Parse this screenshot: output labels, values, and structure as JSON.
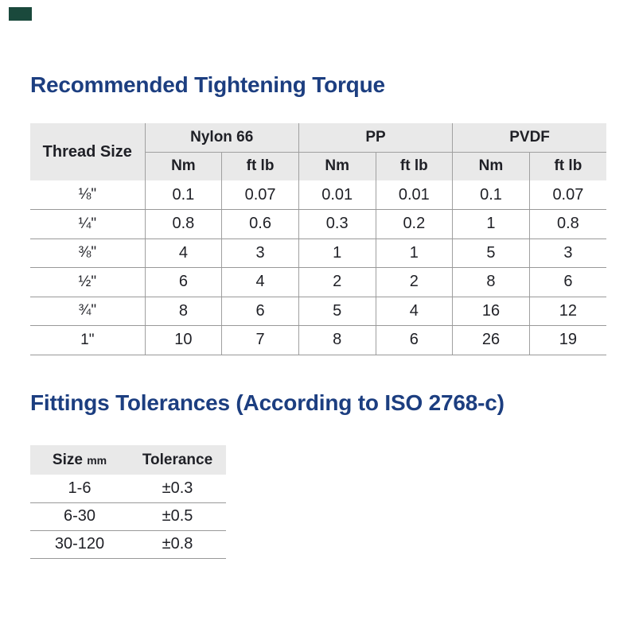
{
  "page": {
    "accent_swatch_color": "#1a493c",
    "title_color": "#1c3e80",
    "header_bg_color": "#e9e9e9",
    "border_color": "#999999"
  },
  "torque_section": {
    "title": "Recommended Tightening Torque",
    "table": {
      "corner_header": "Thread Size",
      "group_headers": [
        "Nylon 66",
        "PP",
        "PVDF"
      ],
      "unit_headers": [
        "Nm",
        "ft lb",
        "Nm",
        "ft lb",
        "Nm",
        "ft lb"
      ],
      "rows": [
        {
          "thread_size": "⅛\"",
          "values": [
            "0.1",
            "0.07",
            "0.01",
            "0.01",
            "0.1",
            "0.07"
          ]
        },
        {
          "thread_size": "¼\"",
          "values": [
            "0.8",
            "0.6",
            "0.3",
            "0.2",
            "1",
            "0.8"
          ]
        },
        {
          "thread_size": "⅜\"",
          "values": [
            "4",
            "3",
            "1",
            "1",
            "5",
            "3"
          ]
        },
        {
          "thread_size": "½\"",
          "values": [
            "6",
            "4",
            "2",
            "2",
            "8",
            "6"
          ]
        },
        {
          "thread_size": "¾\"",
          "values": [
            "8",
            "6",
            "5",
            "4",
            "16",
            "12"
          ]
        },
        {
          "thread_size": "1\"",
          "values": [
            "10",
            "7",
            "8",
            "6",
            "26",
            "19"
          ]
        }
      ]
    }
  },
  "tolerances_section": {
    "title": "Fittings Tolerances (According to ISO 2768-c)",
    "table": {
      "size_label": "Size",
      "size_unit": "mm",
      "tolerance_label": "Tolerance",
      "rows": [
        {
          "size": "1-6",
          "tolerance": "±0.3"
        },
        {
          "size": "6-30",
          "tolerance": "±0.5"
        },
        {
          "size": "30-120",
          "tolerance": "±0.8"
        }
      ]
    }
  }
}
